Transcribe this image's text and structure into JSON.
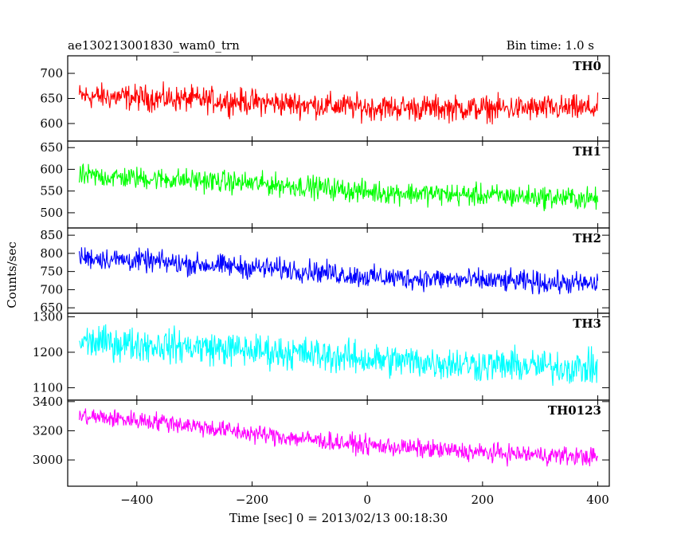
{
  "header": {
    "title": "ae130213001830_wam0_trn",
    "bin_time": "Bin time: 1.0 s"
  },
  "chart_data": {
    "type": "line",
    "xlabel": "Time [sec] 0 = 2013/02/13 00:18:30",
    "ylabel": "Counts/sec",
    "xlim": [
      -520,
      420
    ],
    "x_ticks": [
      -400,
      -200,
      0,
      200,
      400
    ],
    "x_tick_labels": [
      "−400",
      "−200",
      "0",
      "200",
      "400"
    ],
    "x_range_data": [
      -500,
      400
    ],
    "grid": false,
    "panels": [
      {
        "name": "TH0",
        "color": "#ff0000",
        "ylim": [
          565,
          735
        ],
        "y_ticks": [
          600,
          650,
          700
        ],
        "y_tick_labels": [
          "600",
          "650",
          "700"
        ],
        "trend": [
          [
            -500,
            655
          ],
          [
            -300,
            648
          ],
          [
            0,
            632
          ],
          [
            200,
            630
          ],
          [
            400,
            630
          ]
        ],
        "spread": 38
      },
      {
        "name": "TH1",
        "color": "#00ff00",
        "ylim": [
          465,
          665
        ],
        "y_ticks": [
          500,
          550,
          600,
          650
        ],
        "y_tick_labels": [
          "500",
          "550",
          "600",
          "650"
        ],
        "trend": [
          [
            -500,
            585
          ],
          [
            -300,
            575
          ],
          [
            -100,
            560
          ],
          [
            0,
            548
          ],
          [
            200,
            540
          ],
          [
            400,
            532
          ]
        ],
        "spread": 38
      },
      {
        "name": "TH2",
        "color": "#0000ff",
        "ylim": [
          635,
          870
        ],
        "y_ticks": [
          650,
          700,
          750,
          800,
          850
        ],
        "y_tick_labels": [
          "650",
          "700",
          "750",
          "800",
          "850"
        ],
        "trend": [
          [
            -500,
            790
          ],
          [
            -300,
            770
          ],
          [
            -100,
            752
          ],
          [
            0,
            735
          ],
          [
            200,
            725
          ],
          [
            400,
            715
          ]
        ],
        "spread": 45
      },
      {
        "name": "TH3",
        "color": "#00ffff",
        "ylim": [
          1065,
          1310
        ],
        "y_ticks": [
          1100,
          1200,
          1300
        ],
        "y_tick_labels": [
          "1100",
          "1200",
          "1300"
        ],
        "trend": [
          [
            -500,
            1230
          ],
          [
            -300,
            1215
          ],
          [
            -100,
            1195
          ],
          [
            0,
            1180
          ],
          [
            200,
            1165
          ],
          [
            400,
            1155
          ]
        ],
        "spread": 70
      },
      {
        "name": "TH0123",
        "color": "#ff00ff",
        "ylim": [
          2820,
          3410
        ],
        "y_ticks": [
          3000,
          3200,
          3400
        ],
        "y_tick_labels": [
          "3000",
          "3200",
          "3400"
        ],
        "trend": [
          [
            -500,
            3300
          ],
          [
            -350,
            3260
          ],
          [
            -200,
            3180
          ],
          [
            0,
            3100
          ],
          [
            200,
            3050
          ],
          [
            400,
            3020
          ]
        ],
        "spread": 95
      }
    ]
  }
}
